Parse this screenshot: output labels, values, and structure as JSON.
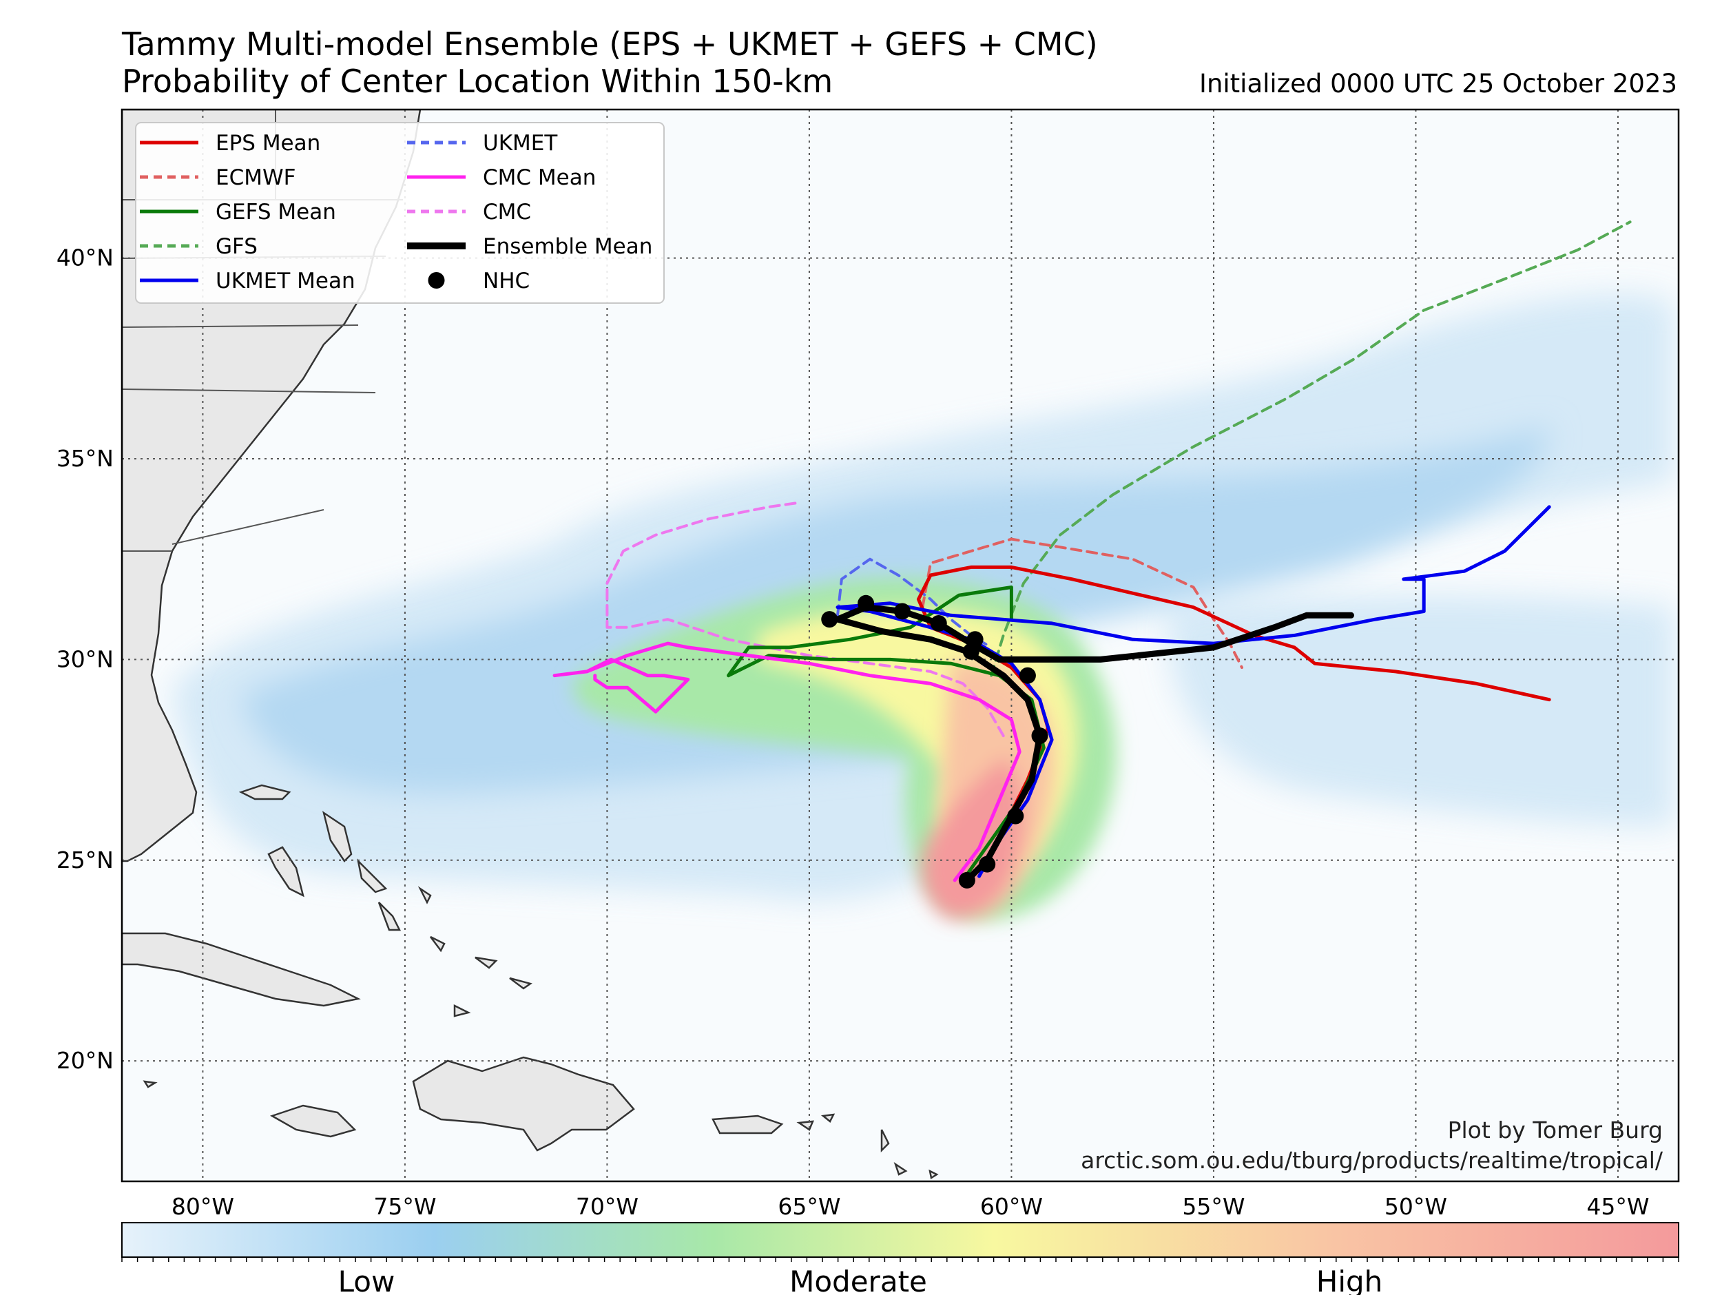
{
  "header": {
    "title_line1": "Tammy Multi-model Ensemble (EPS + UKMET + GEFS + CMC)",
    "title_line2": "Probability of Center Location Within 150-km",
    "initialized": "Initialized 0000 UTC 25 October 2023"
  },
  "map": {
    "lon_range": [
      -82,
      -43.5
    ],
    "lat_range": [
      17,
      43.7
    ],
    "lat_ticks": [
      {
        "value": 20,
        "label": "20°N"
      },
      {
        "value": 25,
        "label": "25°N"
      },
      {
        "value": 30,
        "label": "30°N"
      },
      {
        "value": 35,
        "label": "35°N"
      },
      {
        "value": 40,
        "label": "40°N"
      }
    ],
    "lon_ticks": [
      {
        "value": -80,
        "label": "80°W"
      },
      {
        "value": -75,
        "label": "75°W"
      },
      {
        "value": -70,
        "label": "70°W"
      },
      {
        "value": -65,
        "label": "65°W"
      },
      {
        "value": -60,
        "label": "60°W"
      },
      {
        "value": -55,
        "label": "55°W"
      },
      {
        "value": -50,
        "label": "50°W"
      },
      {
        "value": -45,
        "label": "45°W"
      }
    ],
    "credit_line1": "Plot by Tomer Burg",
    "credit_line2": "arctic.som.ou.edu/tburg/products/realtime/tropical/"
  },
  "legend": [
    {
      "label": "EPS Mean",
      "color": "#dd0000",
      "style": "solid",
      "column": 0
    },
    {
      "label": "ECMWF",
      "color": "#e06060",
      "style": "dashed",
      "column": 0
    },
    {
      "label": "GEFS Mean",
      "color": "#0a7a0a",
      "style": "solid",
      "column": 0
    },
    {
      "label": "GFS",
      "color": "#55aa55",
      "style": "dashed",
      "column": 0
    },
    {
      "label": "UKMET Mean",
      "color": "#0000ee",
      "style": "solid",
      "column": 0
    },
    {
      "label": "UKMET",
      "color": "#5566ee",
      "style": "dashed",
      "column": 1
    },
    {
      "label": "CMC Mean",
      "color": "#ff22ee",
      "style": "solid",
      "column": 1
    },
    {
      "label": "CMC",
      "color": "#ee77ee",
      "style": "dashed",
      "column": 1
    },
    {
      "label": "Ensemble Mean",
      "color": "#000000",
      "style": "thick",
      "column": 1
    },
    {
      "label": "NHC",
      "color": "#000000",
      "style": "dot",
      "column": 1
    }
  ],
  "tracks": [
    {
      "name": "GFS",
      "color": "#55aa55",
      "dash": true,
      "width": 4,
      "points": [
        [
          -60.5,
          29.6
        ],
        [
          -60.2,
          30.6
        ],
        [
          -59.7,
          31.9
        ],
        [
          -58.8,
          33.1
        ],
        [
          -57.5,
          34.1
        ],
        [
          -55.5,
          35.3
        ],
        [
          -53.2,
          36.5
        ],
        [
          -51.5,
          37.5
        ],
        [
          -49.8,
          38.7
        ],
        [
          -48,
          39.4
        ],
        [
          -46,
          40.2
        ],
        [
          -44.7,
          40.9
        ]
      ]
    },
    {
      "name": "ECMWF",
      "color": "#e06060",
      "dash": true,
      "width": 4,
      "points": [
        [
          -62.2,
          31.3
        ],
        [
          -62.0,
          32.4
        ],
        [
          -60.0,
          33.0
        ],
        [
          -57.0,
          32.5
        ],
        [
          -55.5,
          31.8
        ],
        [
          -55.0,
          31.0
        ],
        [
          -54.6,
          30.4
        ],
        [
          -54.3,
          29.8
        ]
      ]
    },
    {
      "name": "UKMET",
      "color": "#5566ee",
      "dash": true,
      "width": 4,
      "points": [
        [
          -64.3,
          31.1
        ],
        [
          -64.2,
          32.0
        ],
        [
          -63.5,
          32.5
        ],
        [
          -62.8,
          32.1
        ],
        [
          -62.0,
          31.5
        ],
        [
          -61.5,
          31.0
        ],
        [
          -61.0,
          30.6
        ],
        [
          -60.5,
          30.3
        ]
      ]
    },
    {
      "name": "CMC",
      "color": "#ee77ee",
      "dash": true,
      "width": 4,
      "points": [
        [
          -60.2,
          28.1
        ],
        [
          -60.6,
          28.8
        ],
        [
          -61.2,
          29.4
        ],
        [
          -62.0,
          29.7
        ],
        [
          -63.5,
          29.9
        ],
        [
          -65.0,
          30.1
        ],
        [
          -67.0,
          30.5
        ],
        [
          -68.5,
          31.0
        ],
        [
          -69.5,
          30.8
        ],
        [
          -70.0,
          30.8
        ],
        [
          -70.0,
          31.9
        ],
        [
          -69.6,
          32.7
        ],
        [
          -68.8,
          33.1
        ],
        [
          -67.5,
          33.5
        ],
        [
          -66.0,
          33.8
        ],
        [
          -65.3,
          33.9
        ]
      ]
    },
    {
      "name": "EPS Mean",
      "color": "#dd0000",
      "dash": false,
      "width": 5,
      "points": [
        [
          -60.7,
          24.8
        ],
        [
          -60.2,
          25.8
        ],
        [
          -59.6,
          27.0
        ],
        [
          -59.1,
          28.3
        ],
        [
          -59.3,
          29.0
        ],
        [
          -60.0,
          29.8
        ],
        [
          -61.0,
          30.4
        ],
        [
          -62.0,
          30.8
        ],
        [
          -62.3,
          31.5
        ],
        [
          -62.0,
          32.1
        ],
        [
          -61.0,
          32.3
        ],
        [
          -60.0,
          32.3
        ],
        [
          -58.5,
          32.0
        ],
        [
          -55.5,
          31.3
        ],
        [
          -54.0,
          30.6
        ],
        [
          -53.0,
          30.3
        ],
        [
          -52.5,
          29.9
        ],
        [
          -50.5,
          29.7
        ],
        [
          -48.5,
          29.4
        ],
        [
          -46.7,
          29.0
        ]
      ]
    },
    {
      "name": "GEFS Mean",
      "color": "#0a7a0a",
      "dash": false,
      "width": 5,
      "points": [
        [
          -61.2,
          24.5
        ],
        [
          -60.5,
          25.5
        ],
        [
          -59.8,
          26.5
        ],
        [
          -59.2,
          27.8
        ],
        [
          -59.5,
          29.0
        ],
        [
          -60.3,
          29.6
        ],
        [
          -61.5,
          29.9
        ],
        [
          -63.0,
          30.0
        ],
        [
          -64.5,
          30.0
        ],
        [
          -66.0,
          30.1
        ],
        [
          -67.0,
          29.6
        ],
        [
          -66.5,
          30.3
        ],
        [
          -65.5,
          30.3
        ],
        [
          -64.0,
          30.5
        ],
        [
          -62.5,
          30.8
        ],
        [
          -61.3,
          31.6
        ],
        [
          -60.0,
          31.8
        ],
        [
          -60.0,
          31.0
        ]
      ]
    },
    {
      "name": "UKMET Mean",
      "color": "#0000ee",
      "dash": false,
      "width": 5,
      "points": [
        [
          -60.8,
          24.6
        ],
        [
          -60.3,
          25.5
        ],
        [
          -59.6,
          26.5
        ],
        [
          -59.0,
          28.0
        ],
        [
          -59.3,
          29.0
        ],
        [
          -60.0,
          29.9
        ],
        [
          -61.0,
          30.5
        ],
        [
          -62.0,
          30.8
        ],
        [
          -63.5,
          31.2
        ],
        [
          -64.3,
          31.3
        ],
        [
          -63.0,
          31.4
        ],
        [
          -61.5,
          31.1
        ],
        [
          -59.0,
          30.9
        ],
        [
          -57.0,
          30.5
        ],
        [
          -55.0,
          30.4
        ],
        [
          -53.0,
          30.6
        ],
        [
          -51.0,
          31.0
        ],
        [
          -49.8,
          31.2
        ],
        [
          -49.8,
          32.0
        ],
        [
          -50.3,
          32.0
        ],
        [
          -48.8,
          32.2
        ],
        [
          -47.8,
          32.7
        ],
        [
          -46.7,
          33.8
        ]
      ]
    },
    {
      "name": "CMC Mean",
      "color": "#ff22ee",
      "dash": false,
      "width": 5,
      "points": [
        [
          -61.4,
          24.5
        ],
        [
          -60.8,
          25.3
        ],
        [
          -60.3,
          26.5
        ],
        [
          -59.8,
          27.7
        ],
        [
          -60.0,
          28.5
        ],
        [
          -60.8,
          29.0
        ],
        [
          -62.0,
          29.4
        ],
        [
          -63.5,
          29.6
        ],
        [
          -65.0,
          29.9
        ],
        [
          -66.5,
          30.1
        ],
        [
          -68.0,
          30.3
        ],
        [
          -68.5,
          30.4
        ],
        [
          -69.5,
          30.1
        ],
        [
          -70.5,
          29.7
        ],
        [
          -71.3,
          29.6
        ],
        [
          -70.5,
          29.7
        ],
        [
          -69.9,
          30.0
        ],
        [
          -69.0,
          29.6
        ],
        [
          -68.6,
          29.6
        ],
        [
          -68.0,
          29.5
        ],
        [
          -68.5,
          29.0
        ],
        [
          -68.8,
          28.7
        ],
        [
          -69.5,
          29.3
        ],
        [
          -70.0,
          29.3
        ],
        [
          -70.3,
          29.5
        ],
        [
          -70.3,
          29.6
        ]
      ]
    },
    {
      "name": "Ensemble Mean",
      "color": "#000000",
      "dash": false,
      "width": 9,
      "points": [
        [
          -61.1,
          24.5
        ],
        [
          -60.6,
          25.0
        ],
        [
          -60.0,
          26.1
        ],
        [
          -59.5,
          27.0
        ],
        [
          -59.3,
          28.1
        ],
        [
          -59.6,
          29.0
        ],
        [
          -60.2,
          29.6
        ],
        [
          -61.1,
          30.2
        ],
        [
          -62.0,
          30.5
        ],
        [
          -63.2,
          30.7
        ],
        [
          -64.3,
          31.0
        ],
        [
          -63.6,
          31.3
        ],
        [
          -62.7,
          31.2
        ],
        [
          -61.8,
          30.9
        ],
        [
          -61.0,
          30.4
        ],
        [
          -60.3,
          30.0
        ],
        [
          -59.0,
          30.0
        ],
        [
          -57.8,
          30.0
        ],
        [
          -55.0,
          30.3
        ],
        [
          -53.5,
          30.8
        ],
        [
          -52.7,
          31.1
        ],
        [
          -51.6,
          31.1
        ]
      ]
    }
  ],
  "nhc_points": [
    [
      -61.1,
      24.5
    ],
    [
      -60.6,
      24.9
    ],
    [
      -59.9,
      26.1
    ],
    [
      -59.3,
      28.1
    ],
    [
      -59.6,
      29.6
    ],
    [
      -61.0,
      30.2
    ],
    [
      -60.9,
      30.5
    ],
    [
      -61.8,
      30.9
    ],
    [
      -62.7,
      31.2
    ],
    [
      -63.6,
      31.4
    ],
    [
      -64.5,
      31.0
    ]
  ],
  "colorbar": {
    "labels": [
      "Low",
      "Moderate",
      "High"
    ],
    "colors": [
      "#e6f2fb",
      "#9bcff0",
      "#a8e8a8",
      "#f8f8a0",
      "#f9c4a4",
      "#f49a9c"
    ]
  },
  "colors": {
    "land": "#e8e8e8",
    "ocean": "#f8fbfd",
    "coast": "#333333",
    "grid": "#555555"
  }
}
